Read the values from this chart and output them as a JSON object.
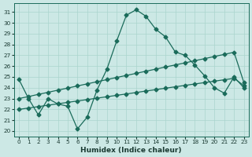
{
  "xlabel": "Humidex (Indice chaleur)",
  "background_color": "#cce8e5",
  "grid_color": "#aad4ce",
  "line_color": "#1a6b5a",
  "xlim": [
    -0.5,
    23.5
  ],
  "ylim": [
    19.5,
    31.8
  ],
  "yticks": [
    20,
    21,
    22,
    23,
    24,
    25,
    26,
    27,
    28,
    29,
    30,
    31
  ],
  "xticks": [
    0,
    1,
    2,
    3,
    4,
    5,
    6,
    7,
    8,
    9,
    10,
    11,
    12,
    13,
    14,
    15,
    16,
    17,
    18,
    19,
    20,
    21,
    22,
    23
  ],
  "line1_x": [
    0,
    1,
    2,
    3,
    4,
    5,
    6,
    7,
    8,
    9,
    10,
    11,
    12,
    13,
    14,
    15,
    16,
    17,
    18,
    19,
    20,
    21,
    22,
    23
  ],
  "line1_y": [
    24.8,
    23.0,
    21.5,
    23.0,
    22.5,
    22.3,
    20.2,
    21.3,
    23.8,
    25.7,
    28.3,
    30.7,
    31.2,
    30.6,
    29.4,
    28.7,
    27.3,
    27.0,
    26.1,
    25.1,
    24.0,
    23.5,
    25.0,
    24.0
  ],
  "line2_x": [
    0,
    1,
    2,
    3,
    4,
    5,
    6,
    7,
    8,
    9,
    10,
    11,
    12,
    13,
    14,
    15,
    16,
    17,
    18,
    19,
    20,
    21,
    22,
    23
  ],
  "line2_y": [
    22.0,
    22.13,
    22.26,
    22.39,
    22.52,
    22.65,
    22.78,
    22.91,
    23.04,
    23.17,
    23.3,
    23.43,
    23.56,
    23.7,
    23.83,
    23.96,
    24.09,
    24.22,
    24.35,
    24.48,
    24.61,
    24.74,
    24.87,
    24.2
  ],
  "line3_x": [
    0,
    1,
    2,
    3,
    4,
    5,
    6,
    7,
    8,
    9,
    10,
    11,
    12,
    13,
    14,
    15,
    16,
    17,
    18,
    19,
    20,
    21,
    22,
    23
  ],
  "line3_y": [
    23.0,
    23.19,
    23.39,
    23.58,
    23.78,
    23.97,
    24.17,
    24.36,
    24.56,
    24.75,
    24.95,
    25.14,
    25.33,
    25.53,
    25.72,
    25.92,
    26.11,
    26.3,
    26.5,
    26.69,
    26.89,
    27.08,
    27.28,
    24.5
  ]
}
